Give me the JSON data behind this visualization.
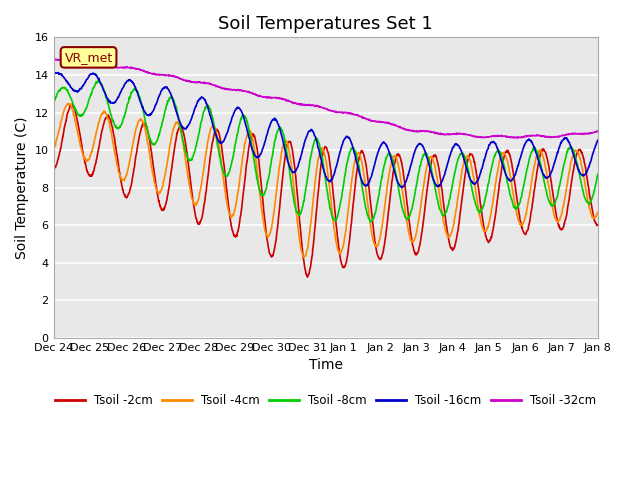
{
  "title": "Soil Temperatures Set 1",
  "xlabel": "Time",
  "ylabel": "Soil Temperature (C)",
  "ylim": [
    0,
    16
  ],
  "yticks": [
    0,
    2,
    4,
    6,
    8,
    10,
    12,
    14,
    16
  ],
  "x_tick_labels": [
    "Dec 24",
    "Dec 25",
    "Dec 26",
    "Dec 27",
    "Dec 28",
    "Dec 29",
    "Dec 30",
    "Dec 31",
    "Jan 1",
    "Jan 2",
    "Jan 3",
    "Jan 4",
    "Jan 5",
    "Jan 6",
    "Jan 7",
    "Jan 8"
  ],
  "annotation_text": "VR_met",
  "colors": {
    "Tsoil -2cm": "#cc0000",
    "Tsoil -4cm": "#ff8800",
    "Tsoil -8cm": "#00cc00",
    "Tsoil -16cm": "#0000cc",
    "Tsoil -32cm": "#cc00cc"
  },
  "background_color": "#e8e8e8",
  "figure_bg": "#ffffff",
  "grid_color": "#ffffff",
  "title_fontsize": 13,
  "label_fontsize": 10,
  "tick_fontsize": 8
}
